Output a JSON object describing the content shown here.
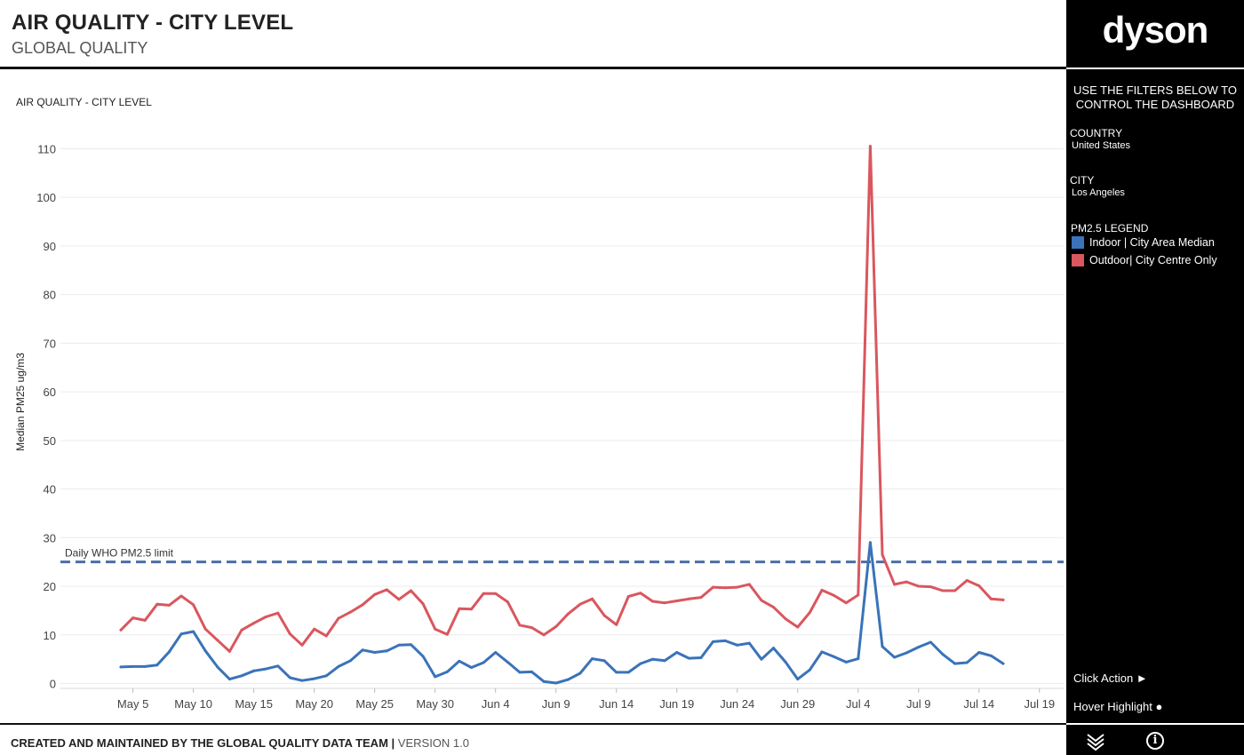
{
  "header": {
    "title": "AIR QUALITY - CITY LEVEL",
    "subtitle": "GLOBAL QUALITY"
  },
  "chart_data": {
    "type": "line",
    "title": "AIR QUALITY - CITY LEVEL",
    "ylabel": "Median PM25 ug/m3",
    "xlabel": "",
    "ylim": [
      -1,
      115
    ],
    "yticks": [
      0,
      10,
      20,
      30,
      40,
      50,
      60,
      70,
      80,
      90,
      100,
      110
    ],
    "xlim": [
      "2018-04-29",
      "2018-07-21"
    ],
    "xticks": [
      "May 5",
      "May 10",
      "May 15",
      "May 20",
      "May 25",
      "May 30",
      "Jun 4",
      "Jun 9",
      "Jun 14",
      "Jun 19",
      "Jun 24",
      "Jun 29",
      "Jul 4",
      "Jul 9",
      "Jul 14",
      "Jul 19"
    ],
    "xtick_dates": [
      "2018-05-05",
      "2018-05-10",
      "2018-05-15",
      "2018-05-20",
      "2018-05-25",
      "2018-05-30",
      "2018-06-04",
      "2018-06-09",
      "2018-06-14",
      "2018-06-19",
      "2018-06-24",
      "2018-06-29",
      "2018-07-04",
      "2018-07-09",
      "2018-07-14",
      "2018-07-19"
    ],
    "grid": true,
    "reference_line": {
      "label": "Daily WHO PM2.5 limit",
      "value": 25,
      "color": "#4a6fa5",
      "style": "dashed"
    },
    "x": [
      "2018-05-04",
      "2018-05-05",
      "2018-05-06",
      "2018-05-07",
      "2018-05-08",
      "2018-05-09",
      "2018-05-10",
      "2018-05-11",
      "2018-05-12",
      "2018-05-13",
      "2018-05-14",
      "2018-05-15",
      "2018-05-16",
      "2018-05-17",
      "2018-05-18",
      "2018-05-19",
      "2018-05-20",
      "2018-05-21",
      "2018-05-22",
      "2018-05-23",
      "2018-05-24",
      "2018-05-25",
      "2018-05-26",
      "2018-05-27",
      "2018-05-28",
      "2018-05-29",
      "2018-05-30",
      "2018-05-31",
      "2018-06-01",
      "2018-06-02",
      "2018-06-03",
      "2018-06-04",
      "2018-06-05",
      "2018-06-06",
      "2018-06-07",
      "2018-06-08",
      "2018-06-09",
      "2018-06-10",
      "2018-06-11",
      "2018-06-12",
      "2018-06-13",
      "2018-06-14",
      "2018-06-15",
      "2018-06-16",
      "2018-06-17",
      "2018-06-18",
      "2018-06-19",
      "2018-06-20",
      "2018-06-21",
      "2018-06-22",
      "2018-06-23",
      "2018-06-24",
      "2018-06-25",
      "2018-06-26",
      "2018-06-27",
      "2018-06-28",
      "2018-06-29",
      "2018-06-30",
      "2018-07-01",
      "2018-07-02",
      "2018-07-03",
      "2018-07-04",
      "2018-07-05",
      "2018-07-06",
      "2018-07-07",
      "2018-07-08",
      "2018-07-09",
      "2018-07-10",
      "2018-07-11",
      "2018-07-12",
      "2018-07-13",
      "2018-07-14",
      "2018-07-15",
      "2018-07-16"
    ],
    "series": [
      {
        "name": "Outdoor| City Centre Only",
        "color": "#d9575e",
        "values": [
          11,
          13.5,
          13,
          16.3,
          16.1,
          18,
          16.2,
          11.2,
          8.9,
          6.6,
          11,
          12.4,
          13.7,
          14.5,
          10.2,
          7.9,
          11.2,
          9.8,
          13.4,
          14.7,
          16.2,
          18.3,
          19.3,
          17.3,
          19.1,
          16.4,
          11.2,
          10.1,
          15.4,
          15.3,
          18.5,
          18.5,
          16.8,
          12,
          11.5,
          10,
          11.7,
          14.3,
          16.3,
          17.4,
          14,
          12.1,
          17.9,
          18.6,
          16.9,
          16.6,
          17,
          17.4,
          17.7,
          19.8,
          19.7,
          19.8,
          20.4,
          17.1,
          15.7,
          13.3,
          11.6,
          14.6,
          19.2,
          18.1,
          16.6,
          18.2,
          110.5,
          26.5,
          20.4,
          20.9,
          20,
          19.9,
          19.1,
          19.1,
          21.2,
          20.1,
          17.4,
          17.2
        ]
      },
      {
        "name": "Indoor | City Area Median",
        "color": "#3a73b8",
        "values": [
          3.4,
          3.5,
          3.5,
          3.8,
          6.5,
          10.2,
          10.7,
          6.7,
          3.4,
          0.9,
          1.6,
          2.6,
          3,
          3.6,
          1.2,
          0.6,
          1,
          1.6,
          3.5,
          4.7,
          6.9,
          6.4,
          6.7,
          7.9,
          8,
          5.6,
          1.4,
          2.4,
          4.6,
          3.3,
          4.3,
          6.4,
          4.4,
          2.3,
          2.4,
          0.4,
          0.1,
          0.8,
          2.1,
          5.1,
          4.7,
          2.3,
          2.3,
          4.1,
          5,
          4.7,
          6.4,
          5.2,
          5.3,
          8.6,
          8.8,
          7.9,
          8.3,
          5,
          7.3,
          4.4,
          0.9,
          2.8,
          6.5,
          5.5,
          4.4,
          5.1,
          29,
          7.6,
          5.4,
          6.3,
          7.5,
          8.5,
          6,
          4.1,
          4.3,
          6.4,
          5.7,
          4.1
        ]
      }
    ]
  },
  "footer": {
    "credit": "CREATED AND MAINTAINED BY THE GLOBAL QUALITY DATA TEAM",
    "separator": "|",
    "version": "VERSION 1.0"
  },
  "sidebar": {
    "logo": "dyson",
    "instructions": "USE THE FILTERS BELOW TO CONTROL THE DASHBOARD",
    "country_label": "COUNTRY",
    "country_value": "United States",
    "city_label": "CITY",
    "city_value": "Los Angeles",
    "legend_title": "PM2.5 LEGEND",
    "legend": [
      {
        "label": "Indoor | City Area Median",
        "color": "#3a73b8"
      },
      {
        "label": "Outdoor| City Centre Only",
        "color": "#d9575e"
      }
    ],
    "click_action": "Click Action ►",
    "hover_highlight": "Hover Highlight ●",
    "icons": [
      "chevron-down-icon",
      "info-icon"
    ],
    "info_glyph": "i"
  }
}
